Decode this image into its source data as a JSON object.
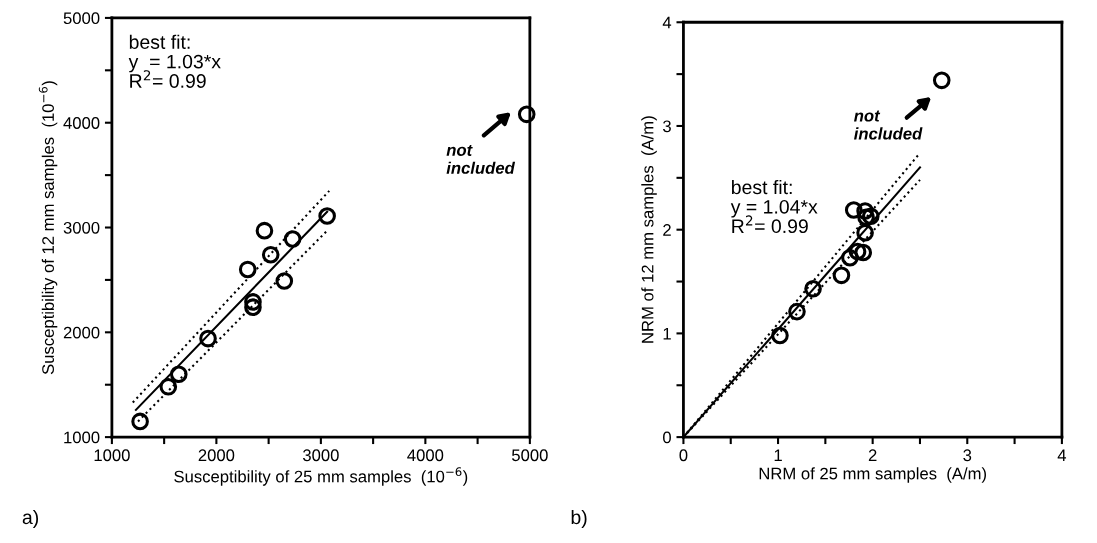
{
  "chart_data": [
    {
      "type": "scatter",
      "xlabel": "Susceptibility of 25 mm samples  (10$^{−6}$)",
      "ylabel": "Susceptibility of 12 mm samples  (10$^{−6}$)",
      "xlim": [
        1000,
        5000
      ],
      "ylim": [
        1000,
        5000
      ],
      "xticks": [
        1000,
        {
          "value": 1500,
          "label": null
        },
        2000,
        {
          "value": 2500,
          "label": null
        },
        3000,
        {
          "value": 3500,
          "label": null
        },
        4000,
        {
          "value": 4500,
          "label": null
        },
        5000
      ],
      "yticks": [
        1000,
        {
          "value": 1500,
          "label": null
        },
        2000,
        {
          "value": 2500,
          "label": null
        },
        3000,
        {
          "value": 3500,
          "label": null
        },
        4000,
        {
          "value": 4500,
          "label": null
        },
        5000
      ],
      "grid": false,
      "legend": false,
      "series": [
        {
          "marker": "circle",
          "color": "#000000",
          "x": [
            1270,
            1540,
            1640,
            1920,
            2300,
            2350,
            2350,
            2460,
            2520,
            2650,
            2730,
            3060,
            4970
          ],
          "values": [
            1150,
            1480,
            1600,
            1940,
            2600,
            2290,
            2240,
            2970,
            2740,
            2490,
            2890,
            3110,
            4080
          ]
        },
        {
          "type": "line",
          "color": "#000000",
          "line_style": "solid",
          "x": [
            1230,
            3060
          ],
          "values": [
            1260,
            3150
          ]
        },
        {
          "type": "line",
          "color": "#000000",
          "line_style": "dotted",
          "x": [
            1200,
            3080
          ],
          "values": [
            1330,
            3350
          ]
        },
        {
          "type": "line",
          "color": "#000000",
          "line_style": "dotted",
          "x": [
            1250,
            3060
          ],
          "values": [
            1150,
            2970
          ]
        }
      ],
      "annotations": [
        "best fit:\ny  = 1.03*x\nR$^{2}$= 0.99",
        "not\nincluded",
        "a)"
      ]
    },
    {
      "type": "scatter",
      "xlabel": "NRM of 25 mm samples  (A/m)",
      "ylabel": "NRM of 12 mm samples  (A/m)",
      "xlim": [
        0,
        4
      ],
      "ylim": [
        0,
        4
      ],
      "xticks": [
        0,
        {
          "value": 0.5,
          "label": null
        },
        1,
        {
          "value": 1.5,
          "label": null
        },
        2,
        {
          "value": 2.5,
          "label": null
        },
        3,
        {
          "value": 3.5,
          "label": null
        },
        4
      ],
      "yticks": [
        0,
        {
          "value": 0.5,
          "label": null
        },
        1,
        {
          "value": 1.5,
          "label": null
        },
        2,
        {
          "value": 2.5,
          "label": null
        },
        3,
        {
          "value": 3.5,
          "label": null
        },
        4
      ],
      "grid": false,
      "legend": false,
      "series": [
        {
          "marker": "circle",
          "color": "#000000",
          "x": [
            1.02,
            1.2,
            1.37,
            1.67,
            1.76,
            1.8,
            1.84,
            1.9,
            1.92,
            1.93,
            1.92,
            1.98,
            2.73
          ],
          "values": [
            0.98,
            1.21,
            1.43,
            1.56,
            1.73,
            2.19,
            1.79,
            1.78,
            2.18,
            2.12,
            1.97,
            2.13,
            3.44
          ]
        },
        {
          "type": "line",
          "color": "#000000",
          "line_style": "solid",
          "x": [
            0,
            2.5
          ],
          "values": [
            0,
            2.6
          ]
        },
        {
          "type": "line",
          "color": "#000000",
          "line_style": "dotted",
          "x": [
            0,
            2.5
          ],
          "values": [
            0,
            2.74
          ]
        },
        {
          "type": "line",
          "color": "#000000",
          "line_style": "dotted",
          "x": [
            0,
            2.5
          ],
          "values": [
            0,
            2.48
          ]
        }
      ],
      "annotations": [
        "best fit:\ny = 1.04*x\nR$^{2}$= 0.99",
        "not\nincluded",
        "b)"
      ]
    }
  ]
}
